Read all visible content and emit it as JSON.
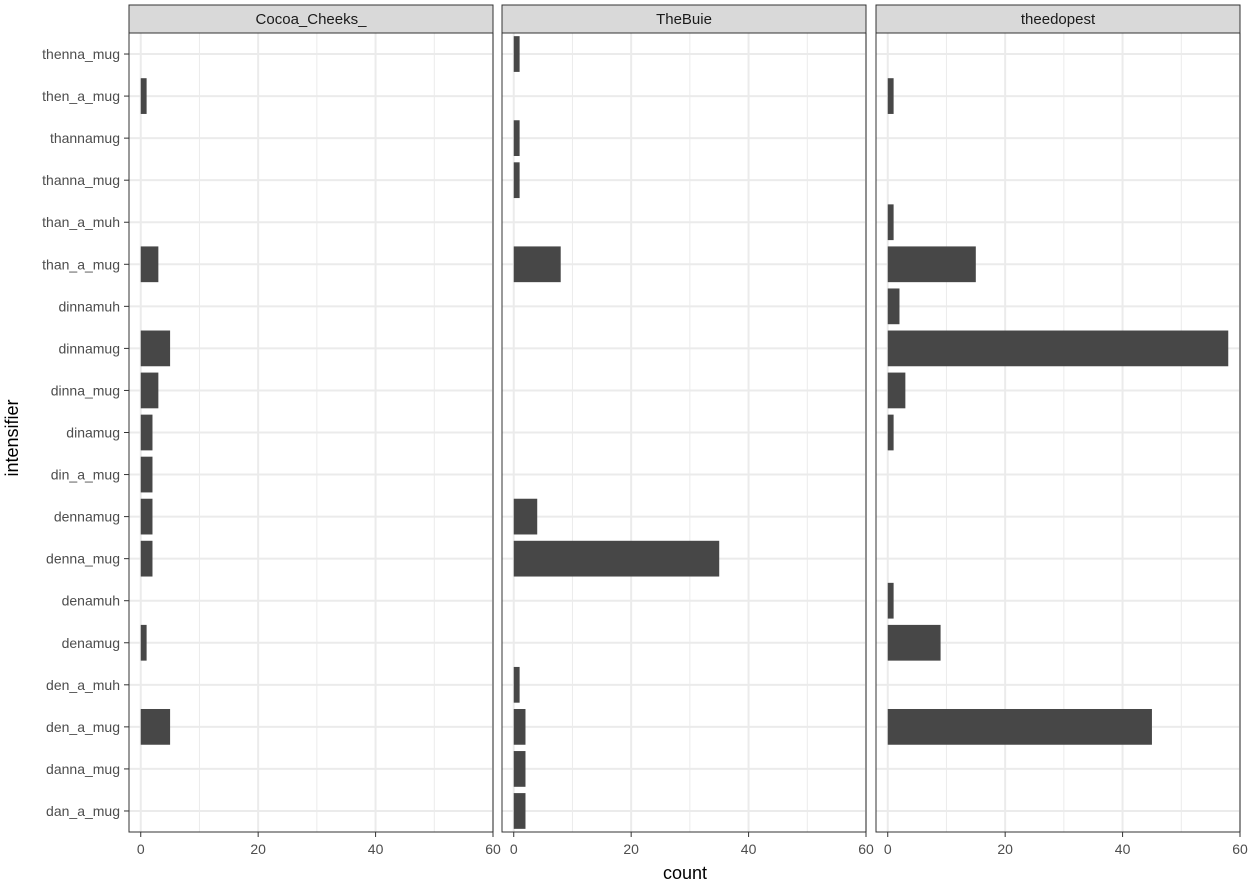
{
  "chart_data": {
    "type": "bar",
    "orientation": "horizontal",
    "facet": "panels",
    "xlabel": "count",
    "ylabel": "intensifier",
    "xlim": [
      -2,
      60
    ],
    "x_ticks": [
      0,
      20,
      40,
      60
    ],
    "grid": true,
    "categories": [
      "thenna_mug",
      "then_a_mug",
      "thannamug",
      "thanna_mug",
      "than_a_muh",
      "than_a_mug",
      "dinnamuh",
      "dinnamug",
      "dinna_mug",
      "dinamug",
      "din_a_mug",
      "dennamug",
      "denna_mug",
      "denamuh",
      "denamug",
      "den_a_muh",
      "den_a_mug",
      "danna_mug",
      "dan_a_mug"
    ],
    "panels": [
      {
        "name": "Cocoa_Cheeks_",
        "values": [
          0,
          1,
          0,
          0,
          0,
          3,
          0,
          5,
          3,
          2,
          2,
          2,
          2,
          0,
          1,
          0,
          5,
          0,
          0
        ]
      },
      {
        "name": "TheBuie",
        "values": [
          1,
          0,
          1,
          1,
          0,
          8,
          0,
          0,
          0,
          0,
          0,
          4,
          35,
          0,
          0,
          1,
          2,
          2,
          2
        ]
      },
      {
        "name": "theedopest",
        "values": [
          0,
          1,
          0,
          0,
          1,
          15,
          2,
          58,
          3,
          1,
          0,
          0,
          0,
          1,
          9,
          0,
          45,
          0,
          0
        ]
      }
    ]
  },
  "colors": {
    "bar": "#474747",
    "panel_bg": "#ffffff",
    "grid": "#ebebeb",
    "panel_border": "#333333",
    "strip_bg": "#d9d9d9"
  }
}
